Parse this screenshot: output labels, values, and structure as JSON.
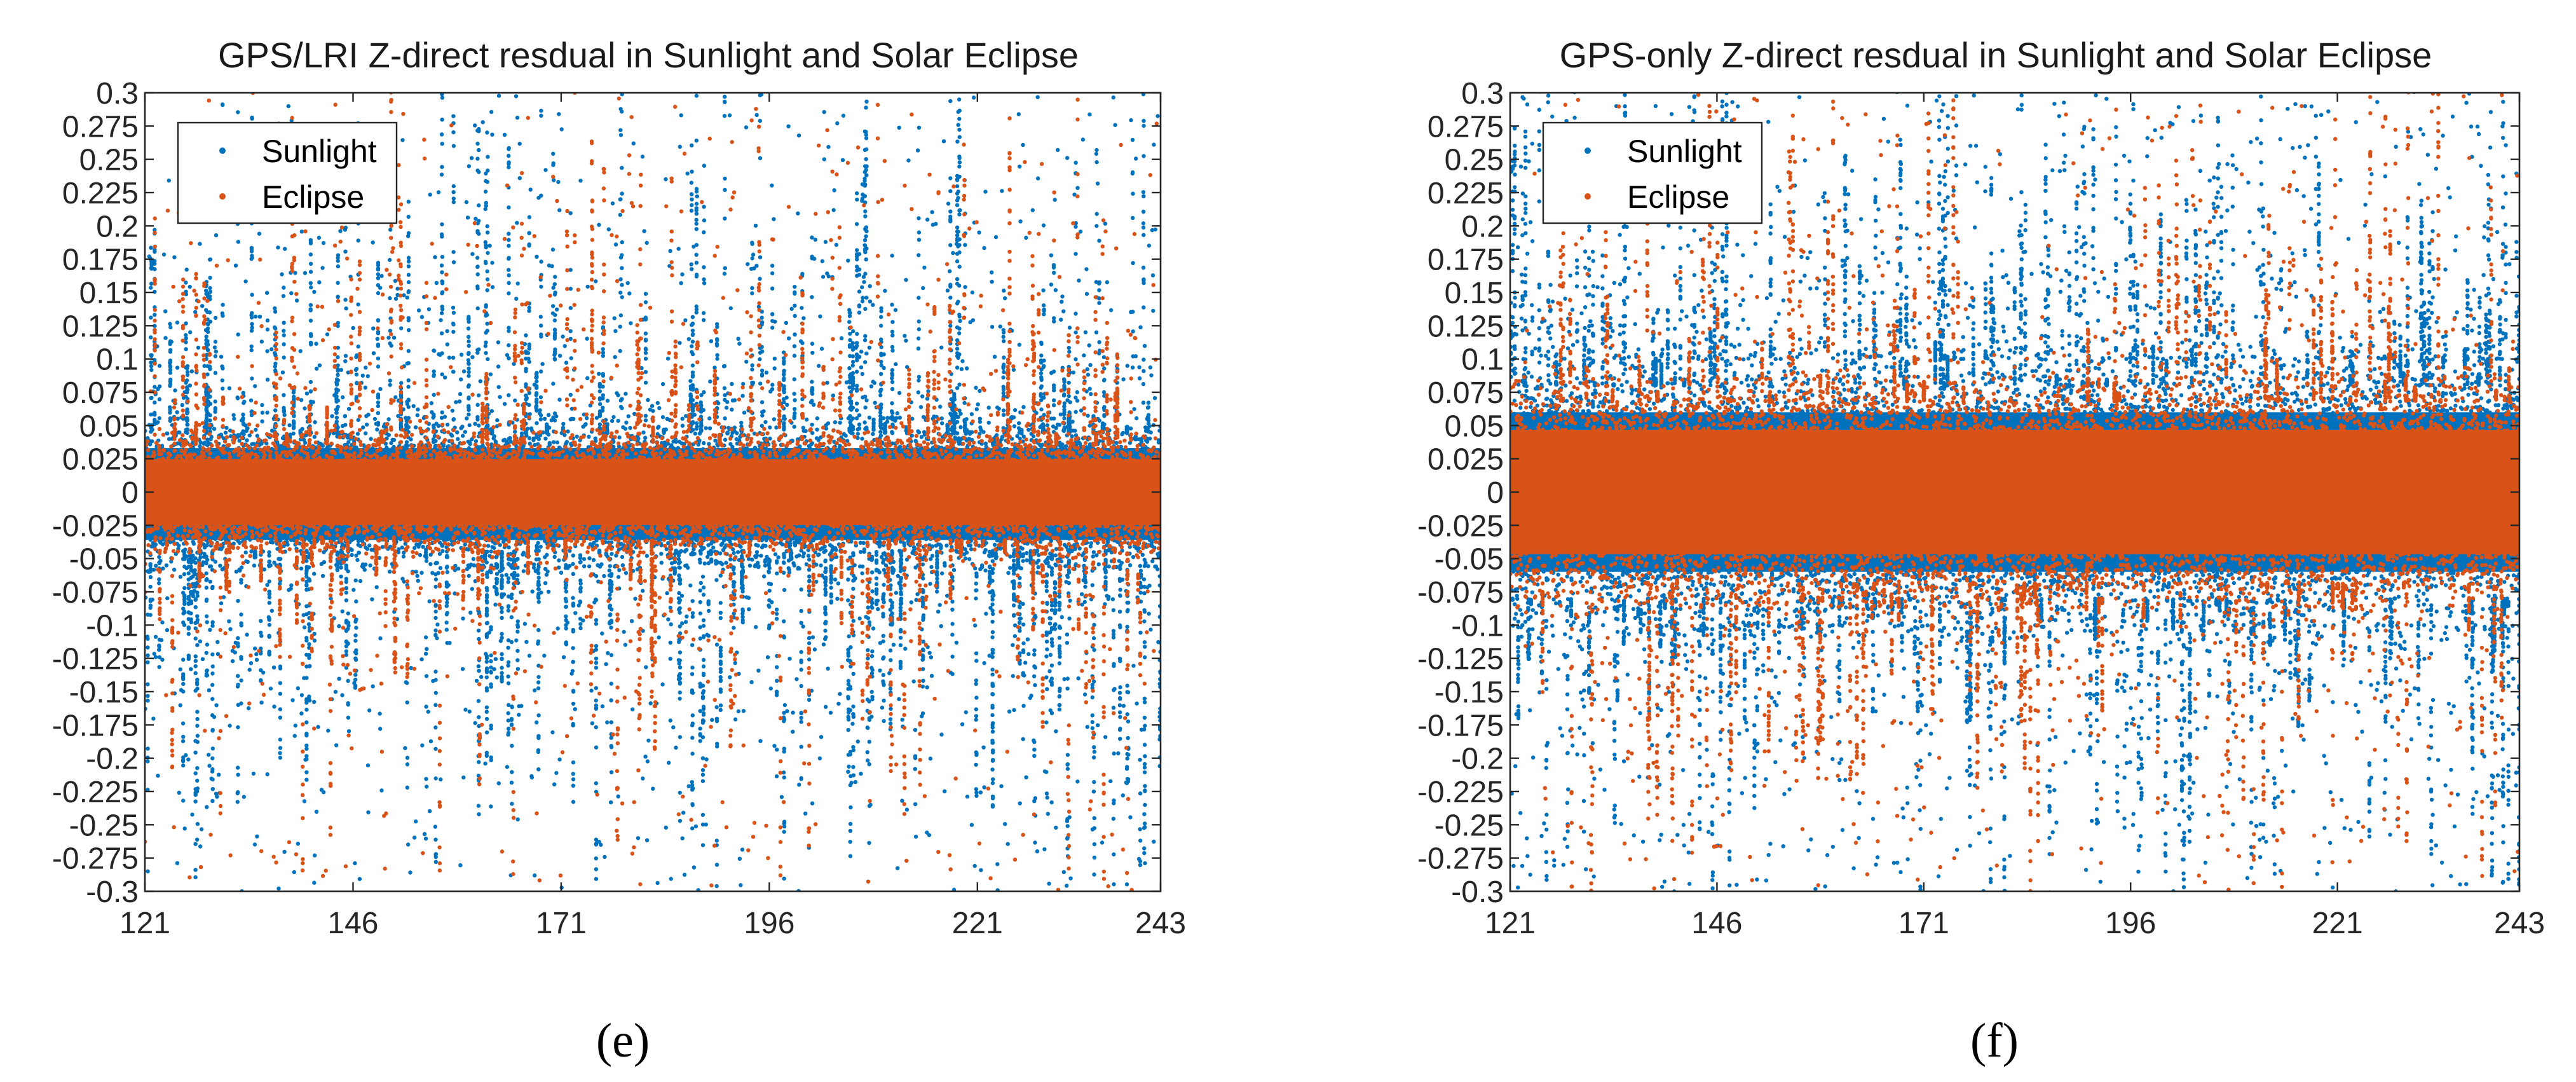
{
  "chart_data": [
    {
      "panel": "e",
      "type": "scatter",
      "title": "GPS/LRI Z-direct resdual in Sunlight and Solar Eclipse",
      "caption": "(e)",
      "xlim": [
        121,
        243
      ],
      "ylim": [
        -0.3,
        0.3
      ],
      "xticks": [
        "121",
        "146",
        "171",
        "196",
        "221",
        "243"
      ],
      "yticks": [
        "0.3",
        "0.275",
        "0.25",
        "0.225",
        "0.2",
        "0.175",
        "0.15",
        "0.125",
        "0.1",
        "0.075",
        "0.05",
        "0.025",
        "0",
        "-0.025",
        "-0.05",
        "-0.075",
        "-0.1",
        "-0.125",
        "-0.15",
        "-0.175",
        "-0.2",
        "-0.225",
        "-0.25",
        "-0.275",
        "-0.3"
      ],
      "legend_position": "top-left",
      "series": [
        {
          "name": "Sunlight",
          "color": "#0072BD",
          "core_sigma": 0.022,
          "core_range": [
            -0.06,
            0.055
          ]
        },
        {
          "name": "Eclipse",
          "color": "#D95319",
          "core_sigma": 0.018,
          "core_range": [
            -0.045,
            0.045
          ]
        }
      ]
    },
    {
      "panel": "f",
      "type": "scatter",
      "title": "GPS-only Z-direct resdual in Sunlight and Solar Eclipse",
      "caption": "(f)",
      "xlim": [
        121,
        243
      ],
      "ylim": [
        -0.3,
        0.3
      ],
      "xticks": [
        "121",
        "146",
        "171",
        "196",
        "221",
        "243"
      ],
      "yticks": [
        "0.3",
        "0.275",
        "0.25",
        "0.225",
        "0.2",
        "0.175",
        "0.15",
        "0.125",
        "0.1",
        "0.075",
        "0.05",
        "0.025",
        "0",
        "-0.025",
        "-0.05",
        "-0.075",
        "-0.1",
        "-0.125",
        "-0.15",
        "-0.175",
        "-0.2",
        "-0.225",
        "-0.25",
        "-0.275",
        "-0.3"
      ],
      "legend_position": "top-left",
      "series": [
        {
          "name": "Sunlight",
          "color": "#0072BD",
          "core_sigma": 0.04,
          "core_range": [
            -0.1,
            0.1
          ]
        },
        {
          "name": "Eclipse",
          "color": "#D95319",
          "core_sigma": 0.035,
          "core_range": [
            -0.085,
            0.085
          ]
        }
      ]
    }
  ]
}
